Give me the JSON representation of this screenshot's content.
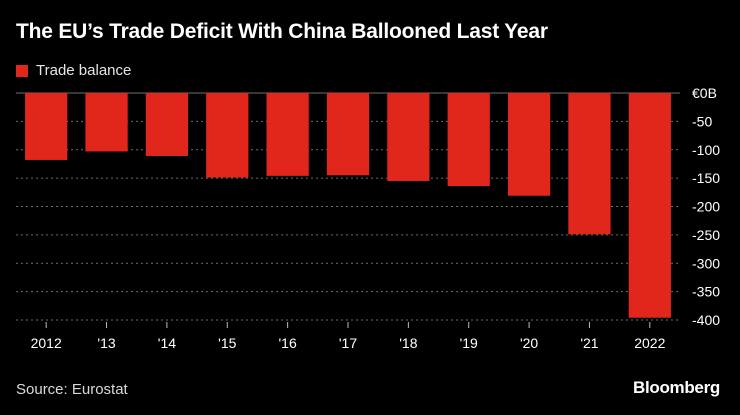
{
  "chart_data": {
    "type": "bar",
    "title": "The EU’s Trade Deficit With China Ballooned Last Year",
    "legend": [
      "Trade balance"
    ],
    "categories": [
      "2012",
      "'13",
      "'14",
      "'15",
      "'16",
      "'17",
      "'18",
      "'19",
      "'20",
      "'21",
      "2022"
    ],
    "series": [
      {
        "name": "Trade balance",
        "values": [
          -118,
          -103,
          -111,
          -149,
          -146,
          -145,
          -155,
          -164,
          -181,
          -249,
          -396
        ]
      }
    ],
    "ylim": [
      -400,
      0
    ],
    "yticks": [
      0,
      -50,
      -100,
      -150,
      -200,
      -250,
      -300,
      -350,
      -400
    ],
    "ytick_labels": [
      "€0B",
      "-50",
      "-100",
      "-150",
      "-200",
      "-250",
      "-300",
      "-350",
      "-400"
    ],
    "xlabel": "",
    "ylabel": "",
    "grid": true
  },
  "colors": {
    "bar": "#e1261c",
    "background": "#000000",
    "grid": "#6e6e6e",
    "axis_text": "#ffffff"
  },
  "footer": {
    "source": "Source: Eurostat",
    "brand": "Bloomberg"
  }
}
